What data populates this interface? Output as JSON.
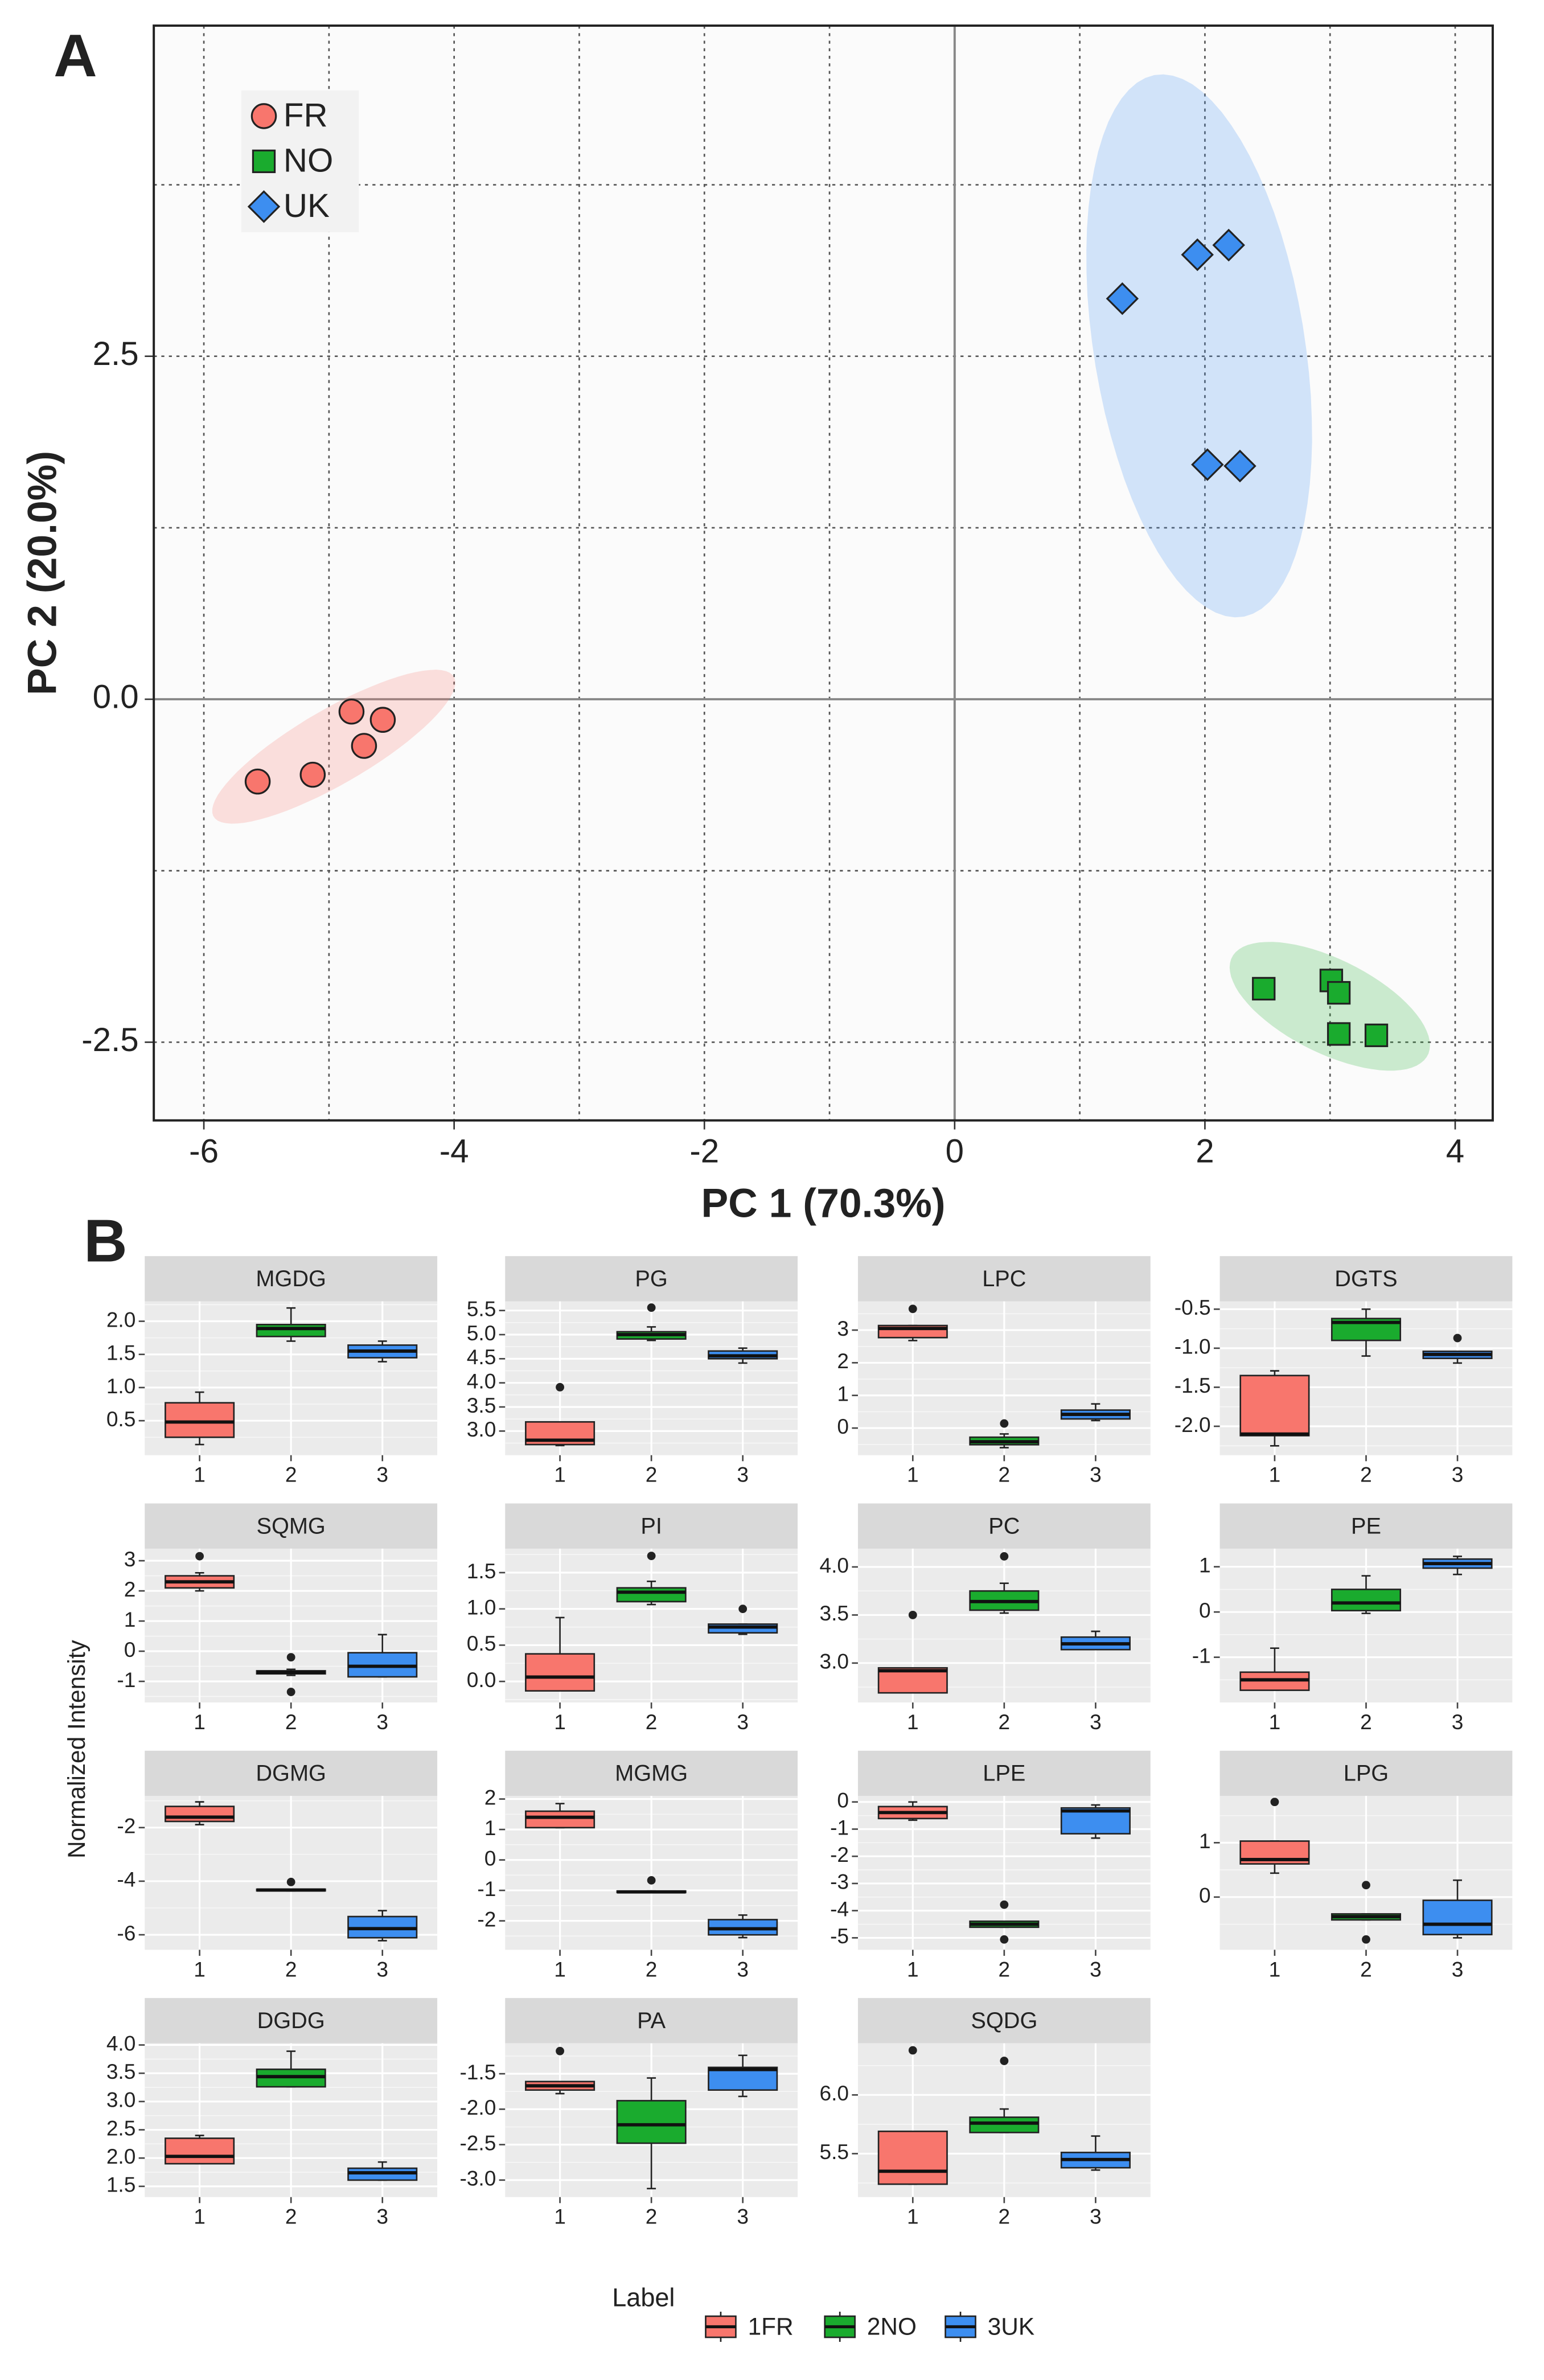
{
  "chart_data": [
    {
      "type": "scatter",
      "panel_label": "A",
      "xlabel": "PC 1 (70.3%)",
      "ylabel": "PC 2 (20.0%)",
      "xlim": [
        -6.4,
        4.3
      ],
      "ylim": [
        -3.07,
        4.91
      ],
      "xticks": [
        -6,
        -4,
        -2,
        0,
        2,
        4
      ],
      "yticks": [
        -2.5,
        {
          "value": 0,
          "label": "0.0"
        },
        2.5
      ],
      "grid": true,
      "minor_grid": true,
      "zero_lines": true,
      "ellipses": true,
      "legend": "top-left",
      "series": [
        {
          "name": "FR",
          "color": "#f8766d",
          "shape": "circle",
          "x": [
            -5.57,
            -5.13,
            -4.82,
            -4.72,
            -4.57
          ],
          "y": [
            -0.6,
            -0.55,
            -0.09,
            -0.34,
            -0.15
          ]
        },
        {
          "name": "NO",
          "color": "#1aab2e",
          "shape": "square",
          "x": [
            2.47,
            3.01,
            3.07,
            3.07,
            3.37
          ],
          "y": [
            -2.11,
            -2.05,
            -2.14,
            -2.44,
            -2.45
          ]
        },
        {
          "name": "UK",
          "color": "#3d8ef0",
          "shape": "diamond",
          "x": [
            1.34,
            1.94,
            2.19,
            2.02,
            2.28
          ],
          "y": [
            2.92,
            3.24,
            3.31,
            1.71,
            1.7
          ]
        }
      ]
    },
    {
      "type": "box",
      "panel_label": "B",
      "ylabel": "Normalized Intensity",
      "legend_title": "Label",
      "legend": [
        "1FR",
        "2NO",
        "3UK"
      ],
      "colors": [
        "#f8766d",
        "#1aab2e",
        "#3d8ef0"
      ],
      "categories": [
        "1",
        "2",
        "3"
      ],
      "xlim": [
        0.4,
        3.6
      ],
      "grid": true,
      "panels": [
        {
          "title": "MGDG",
          "ylim": [
            -0.02,
            2.3
          ],
          "yticks": [
            {
              "value": 0.5,
              "label": "0.5"
            },
            {
              "value": 1,
              "label": "1.0"
            },
            1.5,
            {
              "value": 2,
              "label": "2.0"
            }
          ],
          "boxes": [
            {
              "low": 0.14,
              "q1": 0.25,
              "median": 0.48,
              "q3": 0.77,
              "high": 0.93
            },
            {
              "low": 1.7,
              "q1": 1.77,
              "median": 1.89,
              "q3": 1.95,
              "high": 2.2
            },
            {
              "low": 1.39,
              "q1": 1.45,
              "median": 1.55,
              "q3": 1.64,
              "high": 1.7
            }
          ]
        },
        {
          "title": "PG",
          "ylim": [
            2.5,
            5.69
          ],
          "yticks": [
            {
              "value": 3,
              "label": "3.0"
            },
            3.5,
            {
              "value": 4,
              "label": "4.0"
            },
            4.5,
            {
              "value": 5,
              "label": "5.0"
            },
            5.5
          ],
          "boxes": [
            {
              "low": 2.7,
              "q1": 2.72,
              "median": 2.81,
              "q3": 3.19,
              "high": 3.19,
              "outliers": [
                3.91
              ]
            },
            {
              "low": 4.88,
              "q1": 4.91,
              "median": 5.0,
              "q3": 5.06,
              "high": 5.16,
              "outliers": [
                5.56
              ]
            },
            {
              "low": 4.41,
              "q1": 4.5,
              "median": 4.56,
              "q3": 4.66,
              "high": 4.72
            }
          ]
        },
        {
          "title": "LPC",
          "ylim": [
            -0.83,
            3.88
          ],
          "yticks": [
            0,
            1,
            2,
            3
          ],
          "boxes": [
            {
              "low": 2.68,
              "q1": 2.77,
              "median": 3.05,
              "q3": 3.14,
              "high": 3.14,
              "outliers": [
                3.65
              ]
            },
            {
              "low": -0.6,
              "q1": -0.51,
              "median": -0.42,
              "q3": -0.28,
              "high": -0.18,
              "outliers": [
                0.14
              ]
            },
            {
              "low": 0.23,
              "q1": 0.28,
              "median": 0.42,
              "q3": 0.55,
              "high": 0.74
            }
          ]
        },
        {
          "title": "DGTS",
          "ylim": [
            -2.37,
            -0.4
          ],
          "yticks": [
            {
              "value": -2,
              "label": "-2.0"
            },
            -1.5,
            {
              "value": -1,
              "label": "-1.0"
            },
            -0.5
          ],
          "boxes": [
            {
              "low": -2.25,
              "q1": -2.12,
              "median": -2.1,
              "q3": -1.35,
              "high": -1.29
            },
            {
              "low": -1.1,
              "q1": -0.9,
              "median": -0.67,
              "q3": -0.62,
              "high": -0.5
            },
            {
              "low": -1.19,
              "q1": -1.13,
              "median": -1.08,
              "q3": -1.04,
              "high": -1.04,
              "outliers": [
                -0.87
              ]
            }
          ]
        },
        {
          "title": "SQMG",
          "ylim": [
            -1.7,
            3.4
          ],
          "yticks": [
            -1,
            0,
            1,
            2,
            3
          ],
          "boxes": [
            {
              "low": 2.0,
              "q1": 2.1,
              "median": 2.3,
              "q3": 2.5,
              "high": 2.6,
              "outliers": [
                3.15
              ]
            },
            {
              "low": -0.8,
              "q1": -0.75,
              "median": -0.7,
              "q3": -0.65,
              "high": -0.6,
              "outliers": [
                -0.2,
                -1.35
              ]
            },
            {
              "low": -0.85,
              "q1": -0.85,
              "median": -0.5,
              "q3": -0.05,
              "high": 0.55
            }
          ]
        },
        {
          "title": "PI",
          "ylim": [
            -0.29,
            1.83
          ],
          "yticks": [
            {
              "value": 0,
              "label": "0.0"
            },
            0.5,
            {
              "value": 1,
              "label": "1.0"
            },
            1.5
          ],
          "boxes": [
            {
              "low": -0.13,
              "q1": -0.13,
              "median": 0.06,
              "q3": 0.38,
              "high": 0.88
            },
            {
              "low": 1.06,
              "q1": 1.1,
              "median": 1.23,
              "q3": 1.29,
              "high": 1.38,
              "outliers": [
                1.73
              ]
            },
            {
              "low": 0.65,
              "q1": 0.67,
              "median": 0.75,
              "q3": 0.79,
              "high": 0.79,
              "outliers": [
                1.0
              ]
            }
          ]
        },
        {
          "title": "PC",
          "ylim": [
            2.59,
            4.19
          ],
          "yticks": [
            {
              "value": 3,
              "label": "3.0"
            },
            3.5,
            {
              "value": 4,
              "label": "4.0"
            }
          ],
          "boxes": [
            {
              "low": 2.69,
              "q1": 2.69,
              "median": 2.92,
              "q3": 2.95,
              "high": 2.95,
              "outliers": [
                3.5
              ]
            },
            {
              "low": 3.52,
              "q1": 3.55,
              "median": 3.64,
              "q3": 3.75,
              "high": 3.83,
              "outliers": [
                4.11
              ]
            },
            {
              "low": 3.14,
              "q1": 3.14,
              "median": 3.2,
              "q3": 3.27,
              "high": 3.33
            }
          ]
        },
        {
          "title": "PE",
          "ylim": [
            -2.0,
            1.4
          ],
          "yticks": [
            -1,
            0,
            1
          ],
          "boxes": [
            {
              "low": -1.73,
              "q1": -1.73,
              "median": -1.5,
              "q3": -1.33,
              "high": -0.8
            },
            {
              "low": -0.03,
              "q1": 0.03,
              "median": 0.2,
              "q3": 0.5,
              "high": 0.8
            },
            {
              "low": 0.83,
              "q1": 0.97,
              "median": 1.07,
              "q3": 1.17,
              "high": 1.23
            }
          ]
        },
        {
          "title": "DGMG",
          "ylim": [
            -6.56,
            -0.82
          ],
          "yticks": [
            -6,
            -4,
            -2
          ],
          "boxes": [
            {
              "low": -1.89,
              "q1": -1.77,
              "median": -1.61,
              "q3": -1.21,
              "high": -1.04
            },
            {
              "low": -4.36,
              "q1": -4.36,
              "median": -4.33,
              "q3": -4.3,
              "high": -4.3,
              "outliers": [
                -4.03
              ]
            },
            {
              "low": -6.22,
              "q1": -6.11,
              "median": -5.77,
              "q3": -5.32,
              "high": -5.1
            }
          ]
        },
        {
          "title": "MGMG",
          "ylim": [
            -2.95,
            2.1
          ],
          "yticks": [
            -2,
            -1,
            0,
            1,
            2
          ],
          "boxes": [
            {
              "low": 1.06,
              "q1": 1.06,
              "median": 1.4,
              "q3": 1.6,
              "high": 1.85
            },
            {
              "low": -1.07,
              "q1": -1.07,
              "median": -1.05,
              "q3": -1.02,
              "high": -1.02,
              "outliers": [
                -0.67
              ]
            },
            {
              "low": -2.55,
              "q1": -2.46,
              "median": -2.26,
              "q3": -1.96,
              "high": -1.81
            }
          ]
        },
        {
          "title": "LPE",
          "ylim": [
            -5.44,
            0.22
          ],
          "yticks": [
            -5,
            -4,
            -3,
            -2,
            -1,
            0
          ],
          "boxes": [
            {
              "low": -0.67,
              "q1": -0.61,
              "median": -0.39,
              "q3": -0.17,
              "high": 0
            },
            {
              "low": -4.61,
              "q1": -4.61,
              "median": -4.5,
              "q3": -4.39,
              "high": -4.39,
              "outliers": [
                -3.78,
                -5.06
              ]
            },
            {
              "low": -1.33,
              "q1": -1.17,
              "median": -0.33,
              "q3": -0.22,
              "high": -0.11
            }
          ]
        },
        {
          "title": "LPG",
          "ylim": [
            -0.97,
            1.86
          ],
          "yticks": [
            0,
            1
          ],
          "boxes": [
            {
              "low": 0.44,
              "q1": 0.61,
              "median": 0.69,
              "q3": 1.03,
              "high": 1.03,
              "outliers": [
                1.75
              ]
            },
            {
              "low": -0.42,
              "q1": -0.42,
              "median": -0.36,
              "q3": -0.31,
              "high": -0.31,
              "outliers": [
                0.22,
                -0.78
              ]
            },
            {
              "low": -0.75,
              "q1": -0.69,
              "median": -0.5,
              "q3": -0.06,
              "high": 0.31
            }
          ]
        },
        {
          "title": "DGDG",
          "ylim": [
            1.31,
            4.03
          ],
          "yticks": [
            1.5,
            {
              "value": 2,
              "label": "2.0"
            },
            2.5,
            {
              "value": 3,
              "label": "3.0"
            },
            3.5,
            {
              "value": 4,
              "label": "4.0"
            }
          ],
          "boxes": [
            {
              "low": 1.9,
              "q1": 1.9,
              "median": 2.03,
              "q3": 2.35,
              "high": 2.4
            },
            {
              "low": 3.26,
              "q1": 3.26,
              "median": 3.44,
              "q3": 3.57,
              "high": 3.89
            },
            {
              "low": 1.61,
              "q1": 1.61,
              "median": 1.74,
              "q3": 1.82,
              "high": 1.93
            }
          ]
        },
        {
          "title": "PA",
          "ylim": [
            -3.24,
            -1.07
          ],
          "yticks": [
            {
              "value": -3,
              "label": "-3.0"
            },
            -2.5,
            {
              "value": -2,
              "label": "-2.0"
            },
            -1.5
          ],
          "boxes": [
            {
              "low": -1.78,
              "q1": -1.73,
              "median": -1.67,
              "q3": -1.61,
              "high": -1.61,
              "outliers": [
                -1.18
              ]
            },
            {
              "low": -3.12,
              "q1": -2.48,
              "median": -2.22,
              "q3": -1.88,
              "high": -1.56
            },
            {
              "low": -1.82,
              "q1": -1.73,
              "median": -1.44,
              "q3": -1.41,
              "high": -1.24
            }
          ]
        },
        {
          "title": "SQDG",
          "ylim": [
            5.13,
            6.44
          ],
          "yticks": [
            5.5,
            {
              "value": 6,
              "label": "6.0"
            }
          ],
          "boxes": [
            {
              "low": 5.24,
              "q1": 5.24,
              "median": 5.35,
              "q3": 5.69,
              "high": 5.69,
              "outliers": [
                6.38
              ]
            },
            {
              "low": 5.68,
              "q1": 5.68,
              "median": 5.76,
              "q3": 5.81,
              "high": 5.88,
              "outliers": [
                6.29
              ]
            },
            {
              "low": 5.36,
              "q1": 5.38,
              "median": 5.45,
              "q3": 5.51,
              "high": 5.65
            }
          ]
        }
      ]
    }
  ]
}
